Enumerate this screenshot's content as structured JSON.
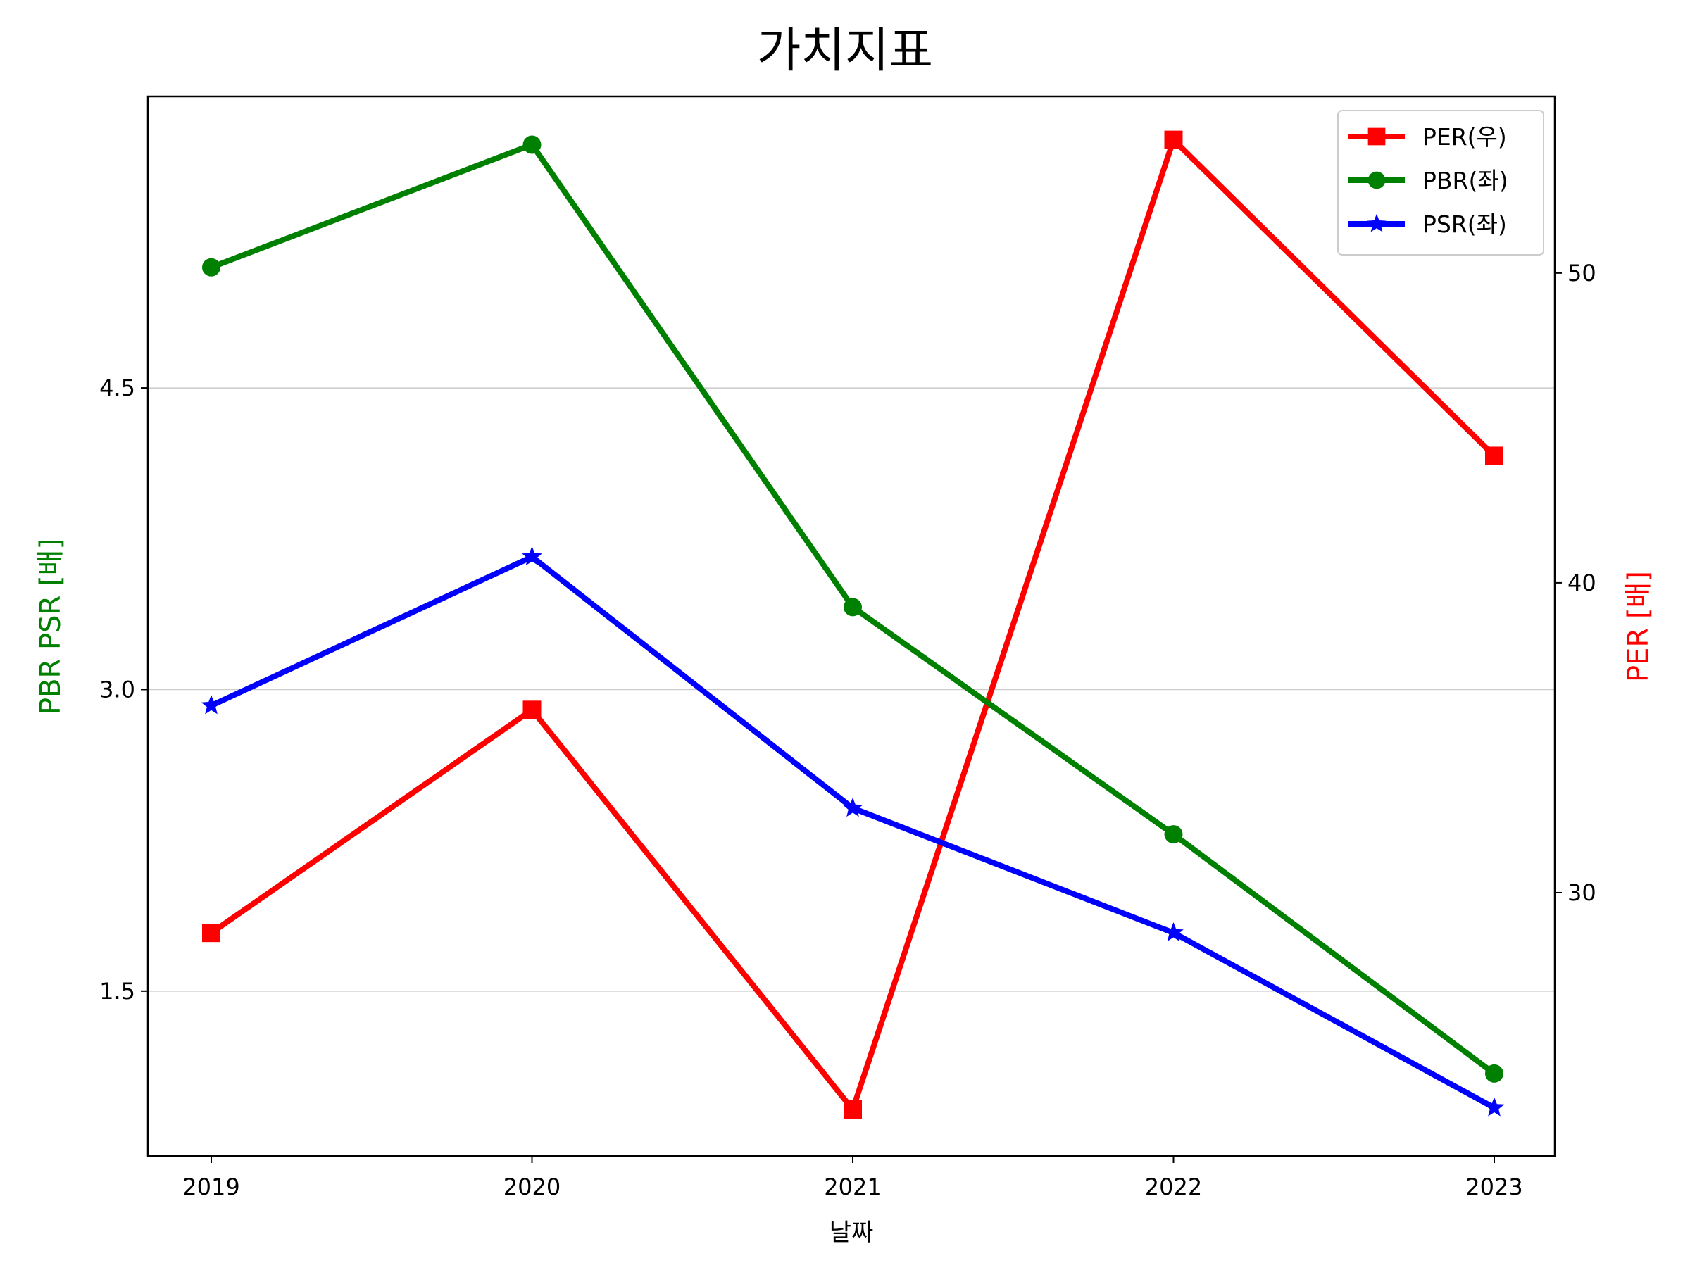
{
  "chart_data": {
    "type": "line",
    "title": "가치지표",
    "xlabel": "날짜",
    "ylabel_left": "PBR PSR [배]",
    "ylabel_right": "PER [배]",
    "categories": [
      "2019",
      "2020",
      "2021",
      "2022",
      "2023"
    ],
    "left_axis": {
      "ylim": [
        0.68,
        5.95
      ],
      "ticks": [
        1.5,
        3.0,
        4.5
      ],
      "tick_labels": [
        "1.5",
        "3.0",
        "4.5"
      ]
    },
    "right_axis": {
      "ylim": [
        21.5,
        55.7
      ],
      "ticks": [
        30,
        40,
        50
      ],
      "tick_labels": [
        "30",
        "40",
        "50"
      ]
    },
    "series": [
      {
        "name": "PER(우)",
        "axis": "right",
        "color": "#ff0000",
        "marker": "square",
        "values": [
          28.7,
          35.9,
          23.0,
          54.3,
          44.1
        ]
      },
      {
        "name": "PBR(좌)",
        "axis": "left",
        "color": "#008000",
        "marker": "circle",
        "values": [
          5.1,
          5.71,
          3.41,
          2.28,
          1.09
        ]
      },
      {
        "name": "PSR(좌)",
        "axis": "left",
        "color": "#0000ff",
        "marker": "star",
        "values": [
          2.92,
          3.66,
          2.41,
          1.79,
          0.92
        ]
      }
    ],
    "grid": "horizontal",
    "legend_position": "top-right"
  }
}
